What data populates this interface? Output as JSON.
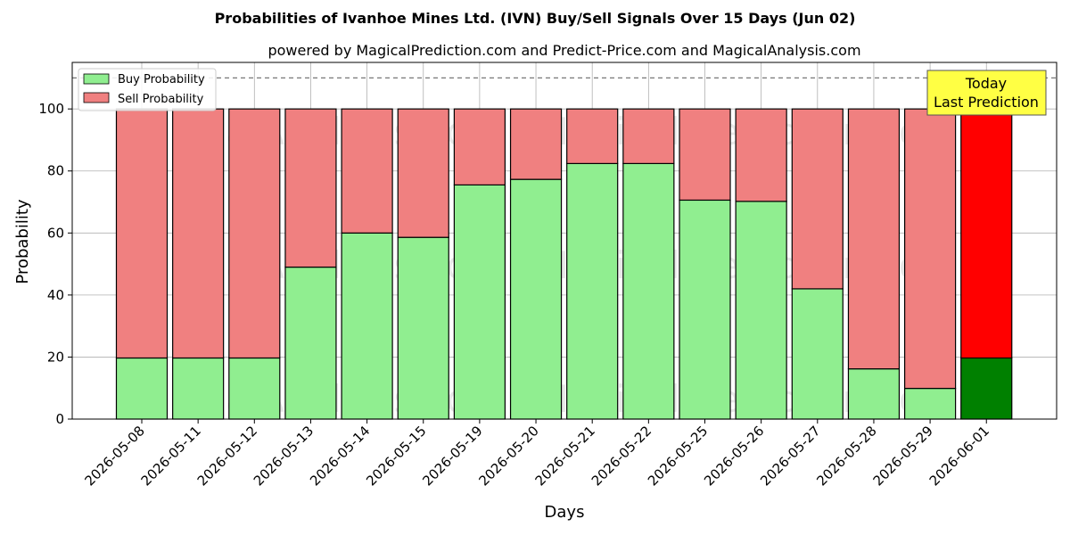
{
  "chart_data": {
    "type": "bar",
    "stacked": true,
    "title": "Probabilities of Ivanhoe Mines Ltd. (IVN) Buy/Sell Signals Over 15 Days (Jun 02)",
    "subtitle": "powered by MagicalPrediction.com and Predict-Price.com and MagicalAnalysis.com",
    "xlabel": "Days",
    "ylabel": "Probability",
    "ylim": [
      0,
      115
    ],
    "yticks": [
      0,
      20,
      40,
      60,
      80,
      100
    ],
    "grid": true,
    "legend_position": "top-left",
    "reference_line": 110,
    "categories": [
      "2026-05-08",
      "2026-05-11",
      "2026-05-12",
      "2026-05-13",
      "2026-05-14",
      "2026-05-15",
      "2026-05-19",
      "2026-05-20",
      "2026-05-21",
      "2026-05-22",
      "2026-05-25",
      "2026-05-26",
      "2026-05-27",
      "2026-05-28",
      "2026-05-29",
      "2026-06-01"
    ],
    "series": [
      {
        "name": "Buy Probability",
        "color": "#90ee90",
        "highlight_color": "#008000",
        "values": [
          19.7,
          19.7,
          19.7,
          49.0,
          60.0,
          58.6,
          75.5,
          77.3,
          82.4,
          82.4,
          70.6,
          70.2,
          42.0,
          16.2,
          9.9,
          19.7
        ]
      },
      {
        "name": "Sell Probability",
        "color": "#f08080",
        "highlight_color": "#ff0000",
        "values": [
          80.3,
          80.3,
          80.3,
          51.0,
          40.0,
          41.4,
          24.5,
          22.7,
          17.6,
          17.6,
          29.4,
          29.8,
          58.0,
          83.8,
          90.1,
          80.3
        ]
      }
    ],
    "highlight_index": 15,
    "annotation": {
      "line1": "Today",
      "line2": "Last Prediction",
      "color": "#ffff44"
    },
    "watermarks": [
      "MagicalAnalysis.com",
      "MagicalPrediction.com"
    ]
  }
}
